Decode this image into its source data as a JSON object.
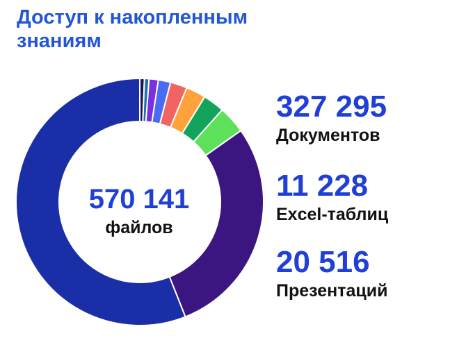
{
  "title_lines": [
    "Доступ к накопленным",
    "знаниям"
  ],
  "center": {
    "value": "570 141",
    "label": "файлов"
  },
  "stats": [
    {
      "value": "327 295",
      "label": "Документов"
    },
    {
      "value": "11 228",
      "label": "Excel-таблиц"
    },
    {
      "value": "20 516",
      "label": "Презентаций"
    }
  ],
  "chart_data": {
    "type": "pie",
    "variant": "donut",
    "unit": "percent",
    "slices": [
      {
        "value": 0.6,
        "color": "#1a1a4a"
      },
      {
        "value": 0.6,
        "color": "#1f6fb0"
      },
      {
        "value": 1.2,
        "color": "#7a2fe0"
      },
      {
        "value": 1.6,
        "color": "#4a6cf0"
      },
      {
        "value": 2.2,
        "color": "#f26464"
      },
      {
        "value": 2.6,
        "color": "#ffa23c"
      },
      {
        "value": 2.8,
        "color": "#13a35a"
      },
      {
        "value": 3.6,
        "color": "#5ee05a"
      },
      {
        "value": 28.8,
        "color": "#3b1580"
      },
      {
        "value": 56.0,
        "color": "#1a2ea8"
      }
    ]
  }
}
